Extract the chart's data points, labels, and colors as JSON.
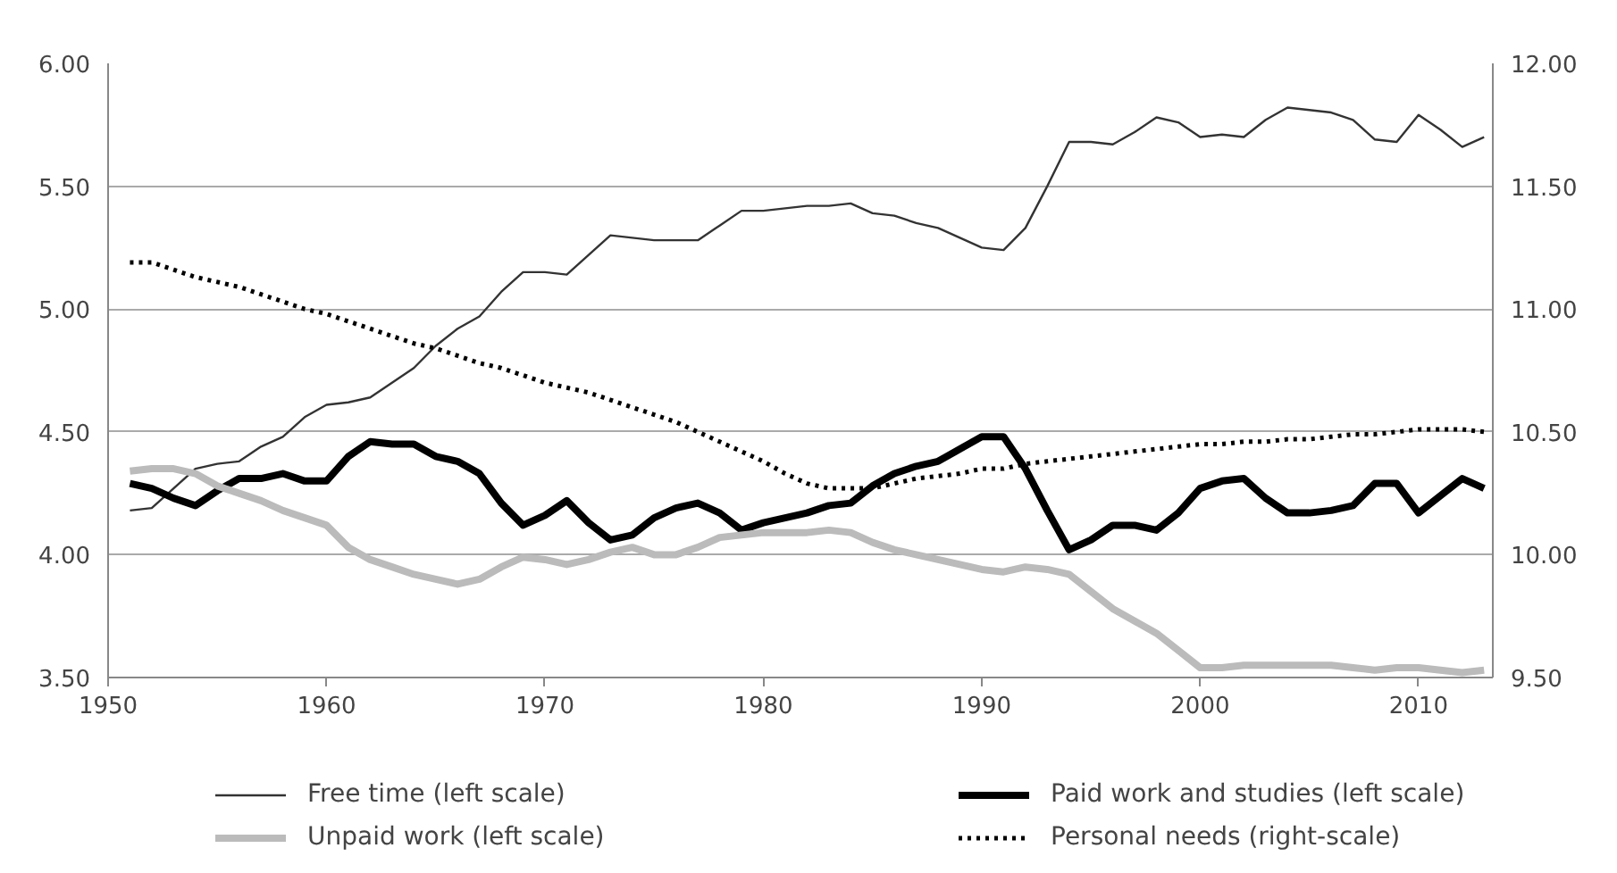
{
  "chart_data": {
    "type": "line",
    "x": [
      1951,
      1952,
      1953,
      1954,
      1955,
      1956,
      1957,
      1958,
      1959,
      1960,
      1961,
      1962,
      1963,
      1964,
      1965,
      1966,
      1967,
      1968,
      1969,
      1970,
      1971,
      1972,
      1973,
      1974,
      1975,
      1976,
      1977,
      1978,
      1979,
      1980,
      1981,
      1982,
      1983,
      1984,
      1985,
      1986,
      1987,
      1988,
      1989,
      1990,
      1991,
      1992,
      1993,
      1994,
      1995,
      1996,
      1997,
      1998,
      1999,
      2000,
      2001,
      2002,
      2003,
      2004,
      2005,
      2006,
      2007,
      2008,
      2009,
      2010,
      2011,
      2012,
      2013
    ],
    "xlim": [
      1950,
      2013.4
    ],
    "xticks": [
      1950,
      1960,
      1970,
      1980,
      1990,
      2000,
      2010
    ],
    "ylim": [
      3.5,
      6.0
    ],
    "yticks": [
      {
        "value": 3.5,
        "label": "3.50"
      },
      {
        "value": 4.0,
        "label": "4.00"
      },
      {
        "value": 4.5,
        "label": "4.50"
      },
      {
        "value": 5.0,
        "label": "5.00"
      },
      {
        "value": 5.5,
        "label": "5.50"
      },
      {
        "value": 6.0,
        "label": "6.00"
      }
    ],
    "y2lim": [
      9.5,
      12.0
    ],
    "y2ticks": [
      {
        "value": 9.5,
        "label": "9.50"
      },
      {
        "value": 10.0,
        "label": "10.00"
      },
      {
        "value": 10.5,
        "label": "10.50"
      },
      {
        "value": 11.0,
        "label": "11.00"
      },
      {
        "value": 11.5,
        "label": "11.50"
      },
      {
        "value": 12.0,
        "label": "12.00"
      }
    ],
    "grid": "y",
    "legend": "bottom",
    "marker": "none",
    "series": [
      {
        "name": "Free time (left scale)",
        "color": "#333333",
        "line_style": "solid",
        "values": [
          4.18,
          4.19,
          4.27,
          4.35,
          4.37,
          4.38,
          4.44,
          4.48,
          4.56,
          4.61,
          4.62,
          4.64,
          4.7,
          4.76,
          4.85,
          4.92,
          4.97,
          5.07,
          5.15,
          5.15,
          5.14,
          5.22,
          5.3,
          5.29,
          5.28,
          5.28,
          5.28,
          5.34,
          5.4,
          5.4,
          5.41,
          5.42,
          5.42,
          5.43,
          5.39,
          5.38,
          5.35,
          5.33,
          5.29,
          5.25,
          5.24,
          5.33,
          5.5,
          5.68,
          5.68,
          5.67,
          5.72,
          5.78,
          5.76,
          5.7,
          5.71,
          5.7,
          5.77,
          5.82,
          5.81,
          5.8,
          5.77,
          5.69,
          5.68,
          5.79,
          5.73,
          5.66,
          5.7
        ]
      },
      {
        "name": "Paid work and studies (left scale)",
        "color": "#000000",
        "line_style": "solid",
        "values": [
          4.29,
          4.27,
          4.23,
          4.2,
          4.26,
          4.31,
          4.31,
          4.33,
          4.3,
          4.3,
          4.4,
          4.46,
          4.45,
          4.45,
          4.4,
          4.38,
          4.33,
          4.21,
          4.12,
          4.16,
          4.22,
          4.13,
          4.06,
          4.08,
          4.15,
          4.19,
          4.21,
          4.17,
          4.1,
          4.13,
          4.15,
          4.17,
          4.2,
          4.21,
          4.28,
          4.33,
          4.36,
          4.38,
          4.43,
          4.48,
          4.48,
          4.35,
          4.18,
          4.02,
          4.06,
          4.12,
          4.12,
          4.1,
          4.17,
          4.27,
          4.3,
          4.31,
          4.23,
          4.17,
          4.17,
          4.18,
          4.2,
          4.29,
          4.29,
          4.17,
          4.24,
          4.31,
          4.27
        ]
      },
      {
        "name": "Unpaid work (left scale)",
        "color": "#bbbbbb",
        "line_style": "solid",
        "values": [
          4.34,
          4.35,
          4.35,
          4.33,
          4.28,
          4.25,
          4.22,
          4.18,
          4.15,
          4.12,
          4.03,
          3.98,
          3.95,
          3.92,
          3.9,
          3.88,
          3.9,
          3.95,
          3.99,
          3.98,
          3.96,
          3.98,
          4.01,
          4.03,
          4.0,
          4.0,
          4.03,
          4.07,
          4.08,
          4.09,
          4.09,
          4.09,
          4.1,
          4.09,
          4.05,
          4.02,
          4.0,
          3.98,
          3.96,
          3.94,
          3.93,
          3.95,
          3.94,
          3.92,
          3.85,
          3.78,
          3.73,
          3.68,
          3.61,
          3.54,
          3.54,
          3.55,
          3.55,
          3.55,
          3.55,
          3.55,
          3.54,
          3.53,
          3.54,
          3.54,
          3.53,
          3.52,
          3.53
        ]
      },
      {
        "name": "Personal needs (right-scale)",
        "color": "#000000",
        "line_style": "dotted",
        "axis": "y2",
        "values": [
          11.19,
          11.19,
          11.16,
          11.13,
          11.11,
          11.09,
          11.06,
          11.03,
          11.0,
          10.98,
          10.95,
          10.92,
          10.89,
          10.86,
          10.84,
          10.81,
          10.78,
          10.76,
          10.73,
          10.7,
          10.68,
          10.66,
          10.63,
          10.6,
          10.57,
          10.54,
          10.5,
          10.46,
          10.42,
          10.38,
          10.33,
          10.29,
          10.27,
          10.27,
          10.27,
          10.29,
          10.31,
          10.32,
          10.33,
          10.35,
          10.35,
          10.37,
          10.38,
          10.39,
          10.4,
          10.41,
          10.42,
          10.43,
          10.44,
          10.45,
          10.45,
          10.46,
          10.46,
          10.47,
          10.47,
          10.48,
          10.49,
          10.49,
          10.5,
          10.51,
          10.51,
          10.51,
          10.5
        ]
      }
    ]
  }
}
